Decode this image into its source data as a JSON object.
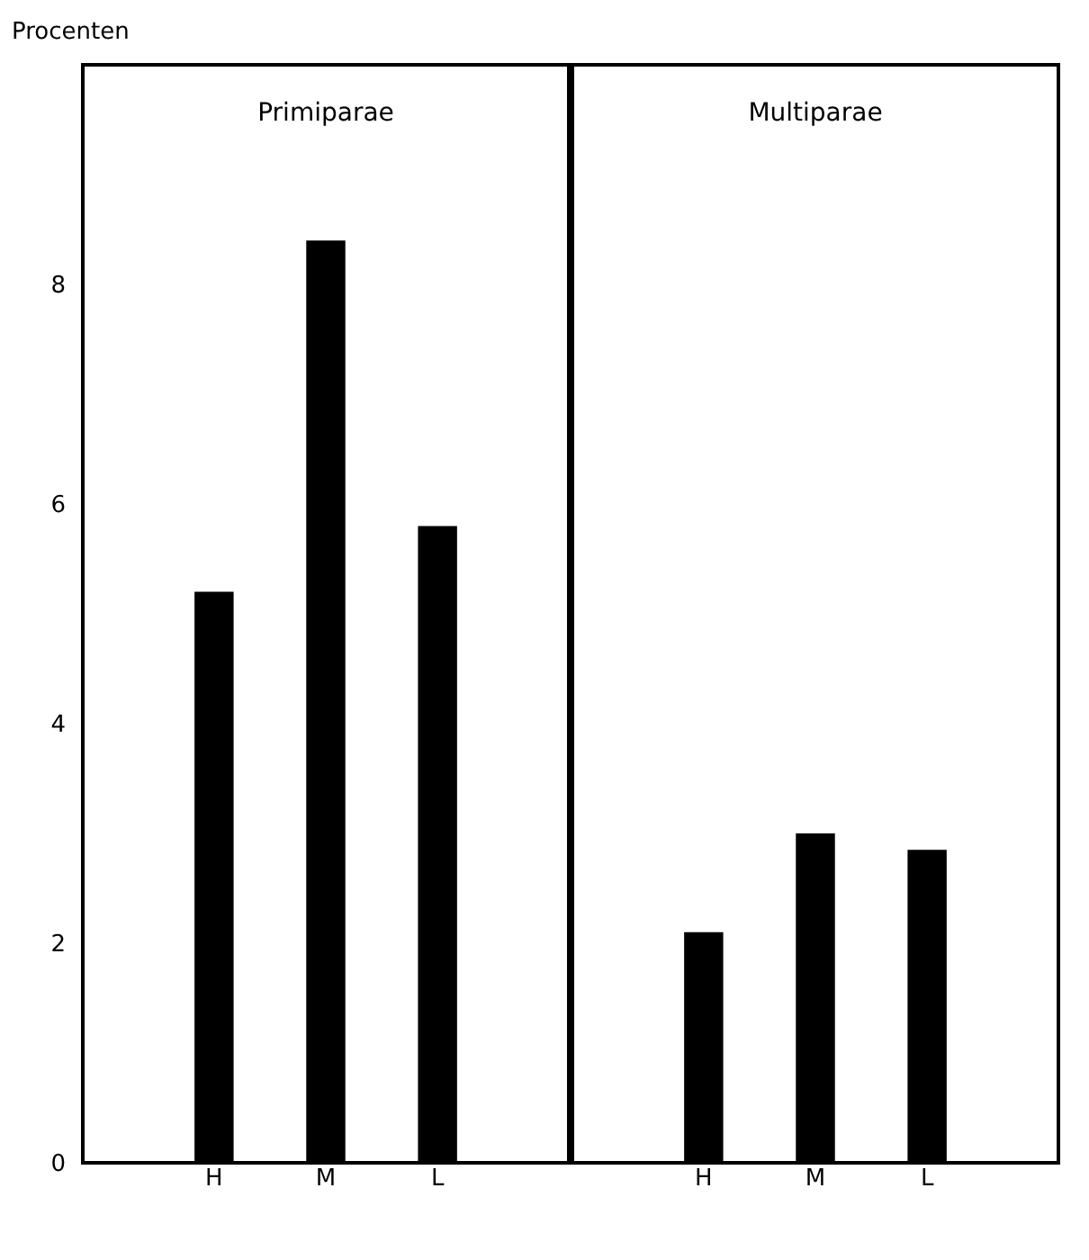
{
  "chart_data": [
    {
      "type": "bar",
      "title": "Primiparae",
      "ylabel": "Procenten",
      "categories": [
        "H",
        "M",
        "L"
      ],
      "values": [
        5.2,
        8.4,
        5.8
      ],
      "color": "#000000",
      "ylim": [
        0,
        10
      ],
      "yticks": [
        0,
        2,
        4,
        6,
        8
      ],
      "grid": false
    },
    {
      "type": "bar",
      "title": "Multiparae",
      "categories": [
        "H",
        "M",
        "L"
      ],
      "values": [
        2.1,
        3.0,
        2.85
      ],
      "color": "#000000",
      "ylim": [
        0,
        10
      ],
      "yticks": [
        0,
        2,
        4,
        6,
        8
      ],
      "grid": false,
      "tick_labels": "x"
    }
  ]
}
